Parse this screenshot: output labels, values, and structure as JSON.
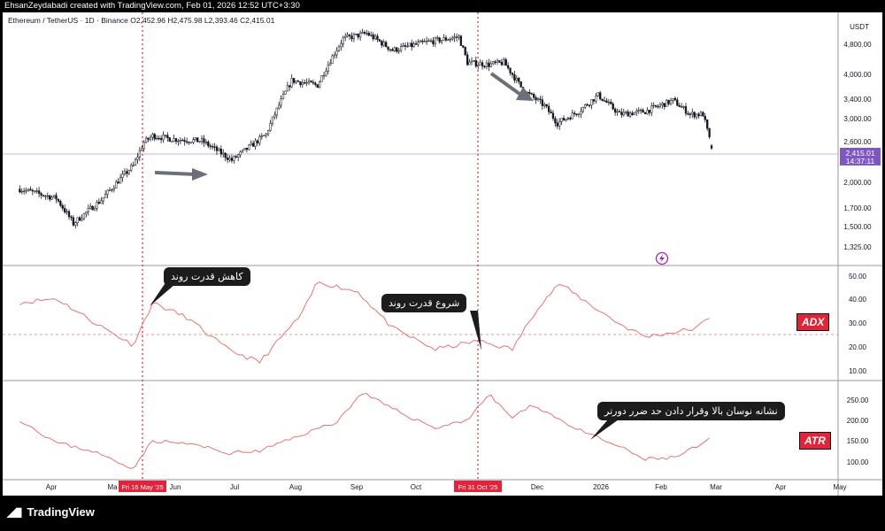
{
  "credit": "EhsanZeydabadi created with TradingView.com, Feb 01, 2026 12:52 UTC+3:30",
  "header": {
    "symbol": "Ethereum / TetherUS · 1D · Binance",
    "ohlc": "O2,452.96 H2,475.98 L2,393.46 C2,415.01"
  },
  "brand": {
    "logo_text": "TradingView",
    "icon": "tradingview-logo-icon"
  },
  "colors": {
    "accent_red": "#e0243a",
    "price_line": "#b39ddb",
    "indicator_line": "#e57373",
    "candles": "#131722"
  },
  "price_axis": {
    "unit": "USDT",
    "ticks": [
      "4,800.00",
      "4,000.00",
      "3,400.00",
      "3,000.00",
      "2,600.00",
      "2,000.00",
      "1,700.00",
      "1,500.00",
      "1,325.00"
    ],
    "last_price": "2,415.01",
    "countdown": "14:37:11"
  },
  "adx_axis": {
    "ticks": [
      "50.00",
      "40.00",
      "30.00",
      "20.00",
      "10.00"
    ]
  },
  "atr_axis": {
    "ticks": [
      "250.00",
      "200.00",
      "150.00",
      "100.00"
    ]
  },
  "time_axis": {
    "labels": [
      "Apr",
      "Ma",
      "Jun",
      "Jul",
      "Aug",
      "Sep",
      "Oct",
      "Dec",
      "2026",
      "Feb",
      "Mar",
      "Apr",
      "May"
    ],
    "markers": [
      "Fri 16 May '25",
      "Fri 31 Oct '25"
    ]
  },
  "annotations": {
    "trend_weakening": "کاهش قدرت روند",
    "trend_start": "شروع قدرت روند",
    "volatility_note": "نشانه نوسان بالا وقرار دادن حد ضرر دورتر"
  },
  "indicator_tags": {
    "adx": "ADX",
    "atr": "ATR"
  },
  "chart_data": [
    {
      "type": "candlestick",
      "title": "Ethereum / TetherUS · 1D · Binance",
      "ylabel": "USDT",
      "y_scale": "log",
      "ylim": [
        1250,
        5100
      ],
      "x": [
        "2025-03-15",
        "2025-04-01",
        "2025-04-09",
        "2025-04-22",
        "2025-05-07",
        "2025-05-12",
        "2025-05-16",
        "2025-05-25",
        "2025-06-08",
        "2025-06-22",
        "2025-07-01",
        "2025-07-08",
        "2025-07-20",
        "2025-08-01",
        "2025-08-13",
        "2025-08-24",
        "2025-09-05",
        "2025-09-20",
        "2025-10-06",
        "2025-10-10",
        "2025-10-20",
        "2025-10-27",
        "2025-11-05",
        "2025-11-15",
        "2025-11-21",
        "2025-12-01",
        "2025-12-10",
        "2025-12-20",
        "2026-01-01",
        "2026-01-14",
        "2026-01-22",
        "2026-01-28",
        "2026-02-01"
      ],
      "close": [
        1900,
        1800,
        1550,
        1780,
        2180,
        2500,
        2600,
        2550,
        2520,
        2250,
        2450,
        2620,
        3600,
        3500,
        4600,
        4750,
        4300,
        4500,
        4650,
        4000,
        3950,
        4000,
        3400,
        3100,
        2800,
        3000,
        3300,
        2950,
        3000,
        3200,
        2950,
        2950,
        2415
      ],
      "last_ohlc": {
        "open": 2452.96,
        "high": 2475.98,
        "low": 2393.46,
        "close": 2415.01
      }
    },
    {
      "type": "line",
      "title": "ADX",
      "ylim": [
        5,
        55
      ],
      "reference_line": 25,
      "x": [
        "2025-03-15",
        "2025-04-01",
        "2025-04-20",
        "2025-05-07",
        "2025-05-16",
        "2025-06-01",
        "2025-06-20",
        "2025-07-05",
        "2025-07-25",
        "2025-08-01",
        "2025-08-20",
        "2025-09-05",
        "2025-09-25",
        "2025-10-15",
        "2025-10-31",
        "2025-11-12",
        "2025-11-22",
        "2025-12-05",
        "2025-12-20",
        "2026-01-01",
        "2026-01-14",
        "2026-01-25",
        "2026-02-01"
      ],
      "values": [
        40,
        42,
        30,
        20,
        40,
        33,
        18,
        12,
        35,
        50,
        45,
        28,
        18,
        22,
        18,
        38,
        49,
        40,
        30,
        24,
        26,
        28,
        34
      ]
    },
    {
      "type": "line",
      "title": "ATR",
      "ylim": [
        70,
        290
      ],
      "x": [
        "2025-03-15",
        "2025-04-01",
        "2025-04-18",
        "2025-05-01",
        "2025-05-07",
        "2025-05-16",
        "2025-06-05",
        "2025-06-20",
        "2025-07-05",
        "2025-07-25",
        "2025-08-10",
        "2025-08-22",
        "2025-09-05",
        "2025-09-25",
        "2025-10-10",
        "2025-10-20",
        "2025-10-31",
        "2025-11-10",
        "2025-12-01",
        "2025-12-20",
        "2026-01-01",
        "2026-01-15",
        "2026-01-25",
        "2026-02-01"
      ],
      "values": [
        205,
        150,
        130,
        100,
        90,
        155,
        145,
        125,
        130,
        170,
        200,
        270,
        230,
        185,
        205,
        265,
        210,
        240,
        180,
        140,
        110,
        115,
        140,
        160
      ]
    }
  ]
}
